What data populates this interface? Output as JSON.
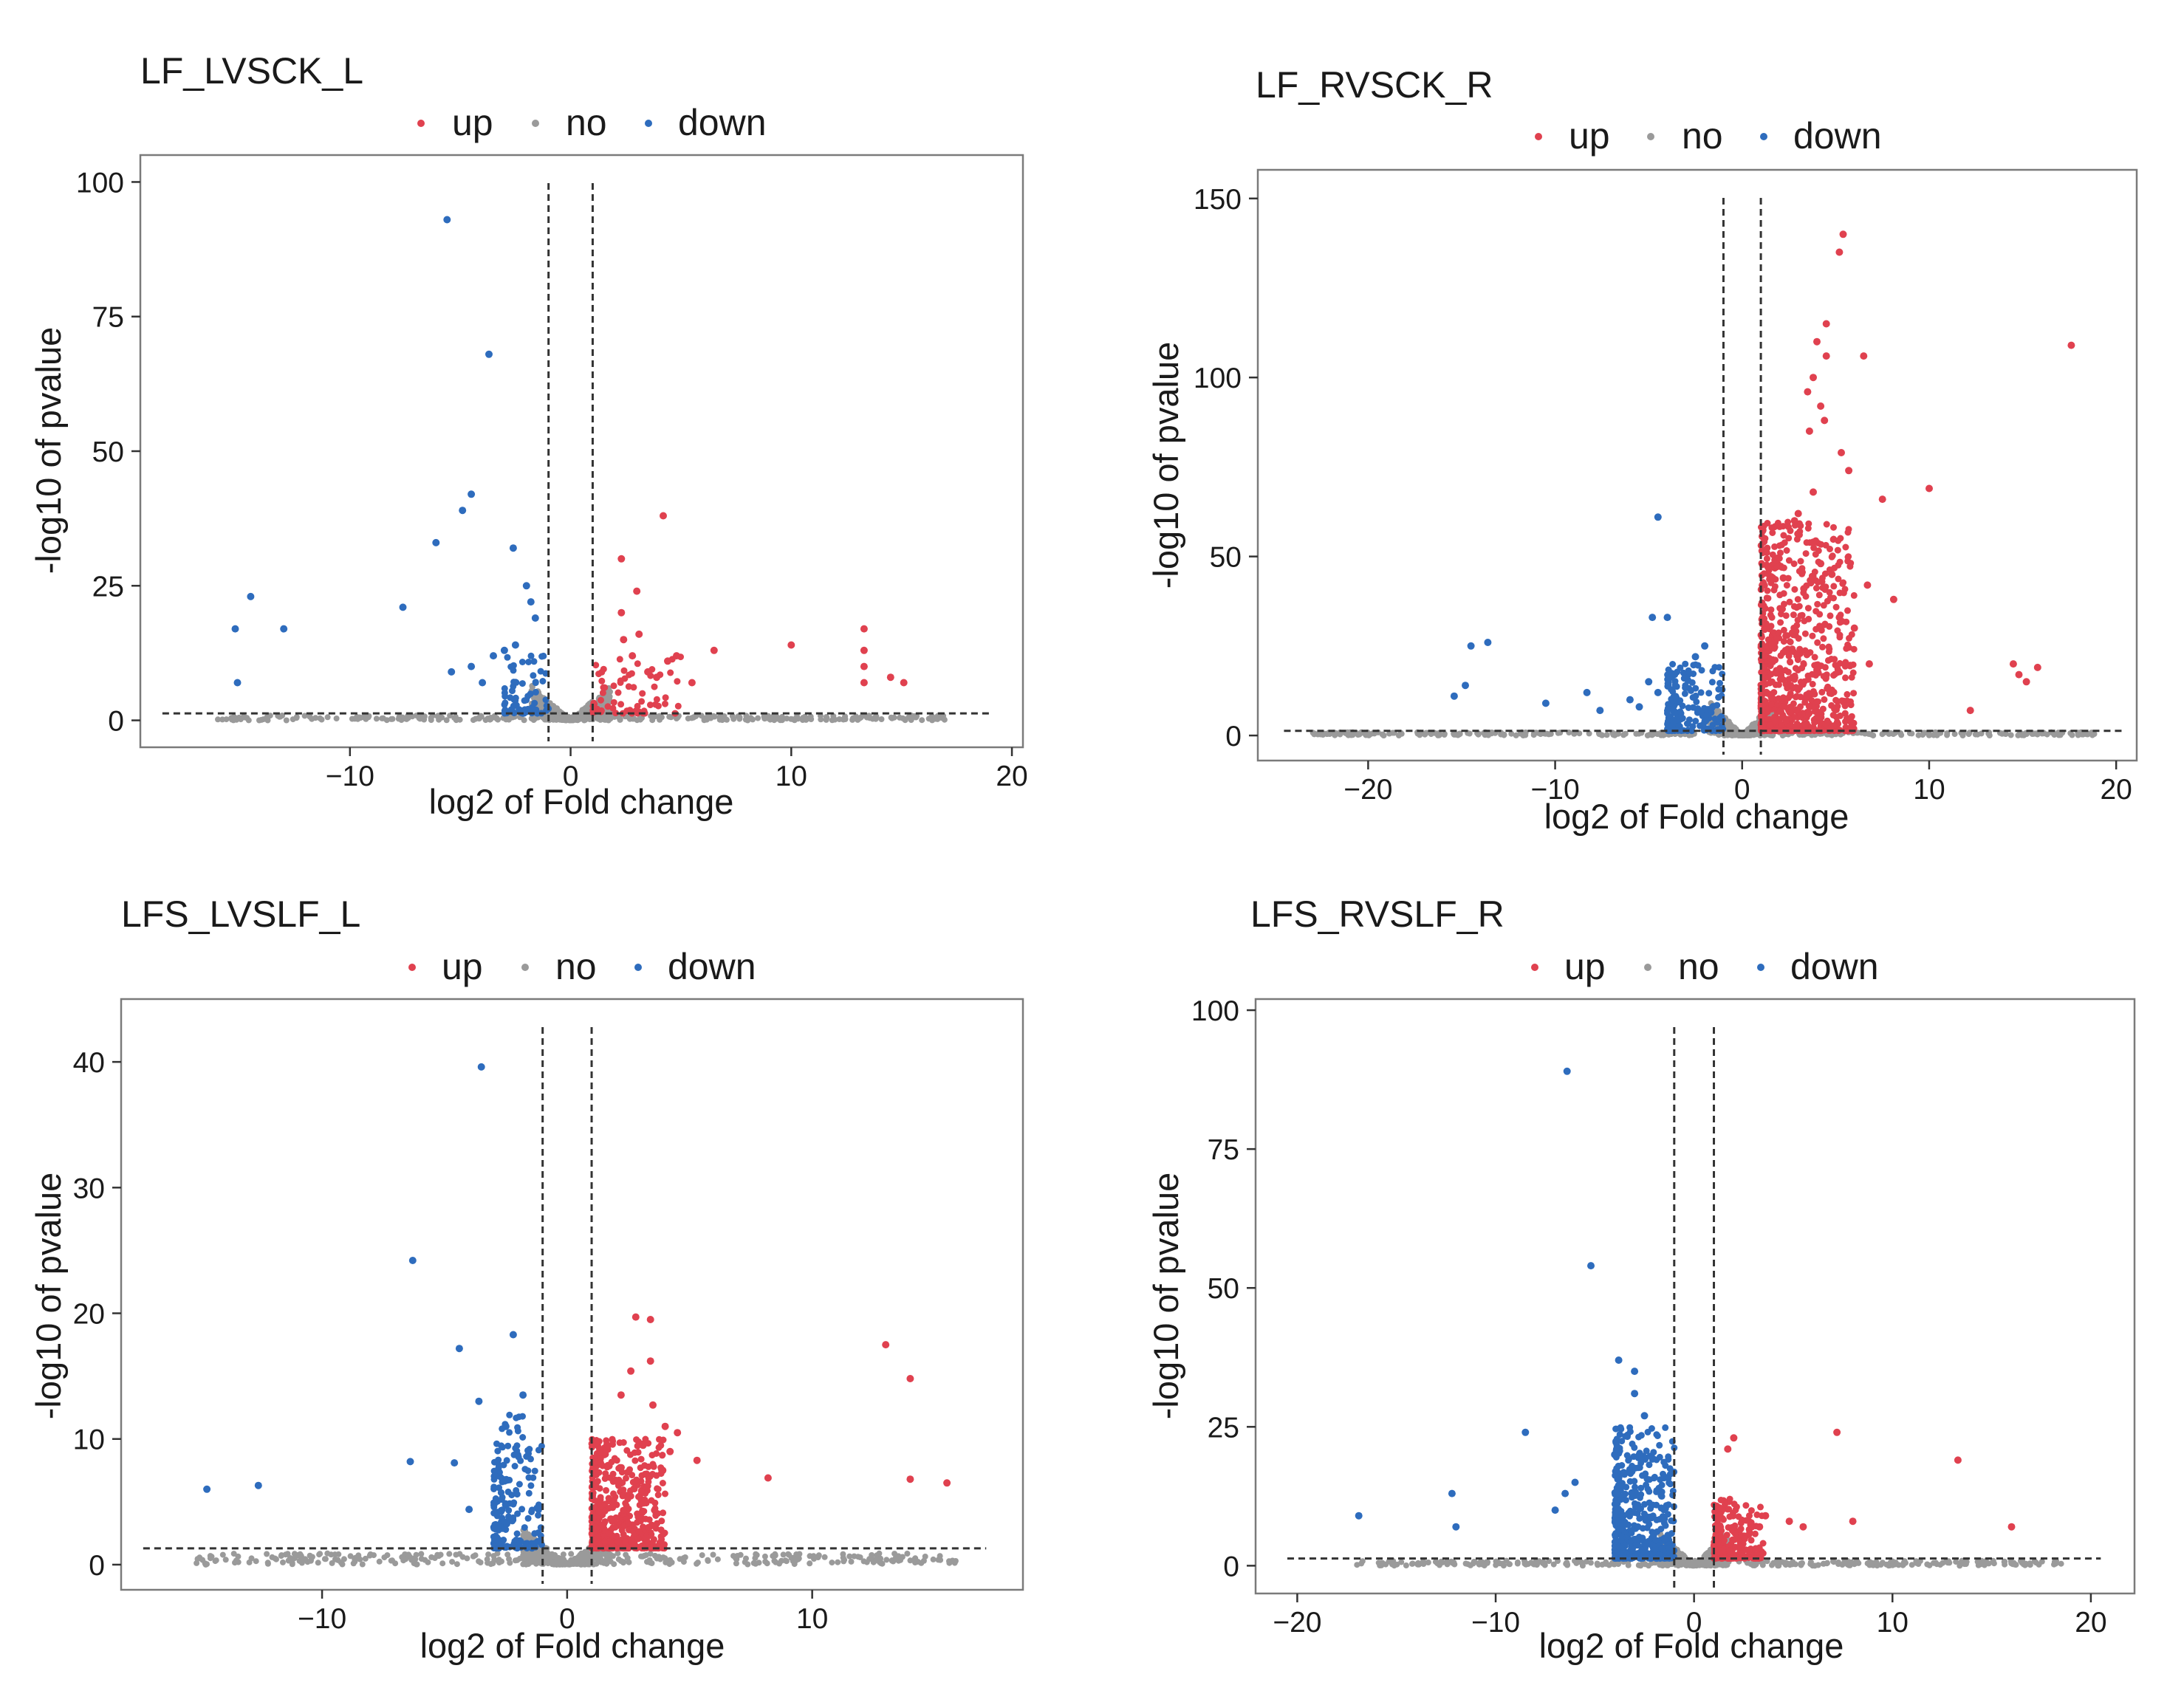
{
  "legend": {
    "labels": [
      "up",
      "no",
      "down"
    ],
    "colors": {
      "up": "#e0414f",
      "no": "#9a9a9a",
      "down": "#2e6cbd"
    }
  },
  "chart_data": [
    {
      "type": "scatter",
      "title": "LF_LVSCK_L",
      "xlabel": "log2 of Fold change",
      "ylabel": "-log10 of pvalue",
      "xlim": [
        -19.5,
        20.5
      ],
      "ylim": [
        -5,
        105
      ],
      "xticks": [
        -10,
        0,
        10,
        20
      ],
      "xtick_labels": [
        "−10",
        "0",
        "10",
        "20"
      ],
      "yticks": [
        0,
        25,
        50,
        75,
        100
      ],
      "ytick_labels": [
        "0",
        "25",
        "50",
        "75",
        "100"
      ],
      "fc_threshold": 1,
      "p_threshold": 1.3,
      "hline_xrange": [
        -18.5,
        19
      ],
      "no_range": [
        -16,
        17
      ],
      "dense_seed": 11,
      "up_dense": {
        "n": 70,
        "x": [
          1,
          5
        ],
        "ymax": 12
      },
      "down_dense": {
        "n": 70,
        "x": [
          -3,
          -1
        ],
        "ymax": 12
      },
      "up_points": [
        [
          4.2,
          38
        ],
        [
          2.3,
          30
        ],
        [
          3,
          24
        ],
        [
          2.3,
          20
        ],
        [
          2.4,
          15
        ],
        [
          6.5,
          13
        ],
        [
          10,
          14
        ],
        [
          13.3,
          17
        ],
        [
          13.3,
          13
        ],
        [
          13.3,
          10
        ],
        [
          13.3,
          7
        ],
        [
          14.5,
          8
        ],
        [
          15.1,
          7
        ],
        [
          4.8,
          12
        ],
        [
          4.4,
          11
        ],
        [
          3.5,
          9
        ],
        [
          3.9,
          8
        ],
        [
          5.5,
          7
        ],
        [
          3.1,
          16
        ],
        [
          2.8,
          12
        ]
      ],
      "down_points": [
        [
          -5.6,
          93
        ],
        [
          -3.7,
          68
        ],
        [
          -4.5,
          42
        ],
        [
          -4.9,
          39
        ],
        [
          -6.1,
          33
        ],
        [
          -2.6,
          32
        ],
        [
          -7.6,
          21
        ],
        [
          -14.5,
          23
        ],
        [
          -15.2,
          17
        ],
        [
          -13,
          17
        ],
        [
          -15.1,
          7
        ],
        [
          -5.4,
          9
        ],
        [
          -4,
          7
        ],
        [
          -2,
          25
        ],
        [
          -1.8,
          22
        ],
        [
          -1.6,
          19
        ],
        [
          -3.5,
          12
        ],
        [
          -3,
          13
        ],
        [
          -2.5,
          14
        ],
        [
          -4.5,
          10
        ]
      ]
    },
    {
      "type": "scatter",
      "title": "LF_RVSCK_R",
      "xlabel": "log2 of Fold change",
      "ylabel": "-log10 of pvalue",
      "xlim": [
        -25.9,
        21.1
      ],
      "ylim": [
        -7,
        158
      ],
      "xticks": [
        -20,
        -10,
        0,
        10,
        20
      ],
      "xtick_labels": [
        "−20",
        "−10",
        "0",
        "10",
        "20"
      ],
      "yticks": [
        0,
        50,
        100,
        150
      ],
      "ytick_labels": [
        "0",
        "50",
        "100",
        "150"
      ],
      "fc_threshold": 1,
      "p_threshold": 1.3,
      "hline_xrange": [
        -24.5,
        20.5
      ],
      "no_range": [
        -23,
        19
      ],
      "dense_seed": 22,
      "up_dense": {
        "n": 800,
        "x": [
          1,
          6
        ],
        "ymax": 60
      },
      "down_dense": {
        "n": 180,
        "x": [
          -4,
          -1
        ],
        "ymax": 20
      },
      "up_points": [
        [
          5.4,
          140
        ],
        [
          5.2,
          135
        ],
        [
          4.5,
          115
        ],
        [
          4,
          110
        ],
        [
          4.5,
          106
        ],
        [
          6.5,
          106
        ],
        [
          17.6,
          109
        ],
        [
          3.8,
          100
        ],
        [
          3.5,
          96
        ],
        [
          4.2,
          92
        ],
        [
          4.4,
          88
        ],
        [
          3.6,
          85
        ],
        [
          5.3,
          79
        ],
        [
          5.7,
          74
        ],
        [
          7.5,
          66
        ],
        [
          10,
          69
        ],
        [
          3.8,
          68
        ],
        [
          8.1,
          38
        ],
        [
          12.2,
          7
        ],
        [
          14.5,
          20
        ],
        [
          14.8,
          17
        ],
        [
          15.2,
          15
        ],
        [
          15.8,
          19
        ],
        [
          6.7,
          42
        ],
        [
          6.8,
          20
        ],
        [
          6,
          30
        ],
        [
          4.2,
          48
        ],
        [
          3.8,
          54
        ],
        [
          3,
          62
        ],
        [
          2.8,
          60
        ],
        [
          2.2,
          44
        ],
        [
          3.3,
          41
        ],
        [
          4.8,
          45
        ],
        [
          5.2,
          33
        ]
      ],
      "down_points": [
        [
          -4.5,
          61
        ],
        [
          -13.6,
          26
        ],
        [
          -14.5,
          25
        ],
        [
          -14.8,
          14
        ],
        [
          -15.4,
          11
        ],
        [
          -10.5,
          9
        ],
        [
          -8.3,
          12
        ],
        [
          -4.8,
          33
        ],
        [
          -4,
          33
        ],
        [
          -7.6,
          7
        ],
        [
          -5,
          15
        ],
        [
          -4.5,
          12
        ],
        [
          -2,
          25
        ],
        [
          -2.5,
          22
        ],
        [
          -6,
          10
        ],
        [
          -5.5,
          8
        ]
      ]
    },
    {
      "type": "scatter",
      "title": "LFS_LVSLF_L",
      "xlabel": "log2 of Fold change",
      "ylabel": "-log10 of pvalue",
      "xlim": [
        -18.2,
        18.6
      ],
      "ylim": [
        -2,
        45
      ],
      "xticks": [
        -10,
        0,
        10
      ],
      "xtick_labels": [
        "−10",
        "0",
        "10"
      ],
      "yticks": [
        0,
        10,
        20,
        30,
        40
      ],
      "ytick_labels": [
        "0",
        "10",
        "20",
        "30",
        "40"
      ],
      "fc_threshold": 1,
      "p_threshold": 1.3,
      "hline_xrange": [
        -17.3,
        17.1
      ],
      "no_range": [
        -15.5,
        16
      ],
      "dense_seed": 33,
      "up_dense": {
        "n": 500,
        "x": [
          1,
          4
        ],
        "ymax": 10
      },
      "down_dense": {
        "n": 180,
        "x": [
          -3,
          -1
        ],
        "ymax": 12
      },
      "up_points": [
        [
          2.8,
          19.7
        ],
        [
          3.4,
          19.5
        ],
        [
          3.4,
          16.2
        ],
        [
          2.2,
          13.5
        ],
        [
          3.5,
          12.7
        ],
        [
          4,
          11
        ],
        [
          4.5,
          10.5
        ],
        [
          5.3,
          8.3
        ],
        [
          8.2,
          6.9
        ],
        [
          13,
          17.5
        ],
        [
          14,
          14.8
        ],
        [
          14,
          6.8
        ],
        [
          15.5,
          6.5
        ],
        [
          2.6,
          15.4
        ],
        [
          3.1,
          9.5
        ],
        [
          3.9,
          7.5
        ],
        [
          4.2,
          9
        ]
      ],
      "down_points": [
        [
          -3.5,
          39.6
        ],
        [
          -6.3,
          24.2
        ],
        [
          -2.2,
          18.3
        ],
        [
          -4.4,
          17.2
        ],
        [
          -3.6,
          13
        ],
        [
          -6.4,
          8.2
        ],
        [
          -4.6,
          8.1
        ],
        [
          -4,
          4.4
        ],
        [
          -14.7,
          6
        ],
        [
          -12.6,
          6.3
        ],
        [
          -1.8,
          13.5
        ],
        [
          -2.5,
          11
        ]
      ]
    },
    {
      "type": "scatter",
      "title": "LFS_RVSLF_R",
      "xlabel": "log2 of Fold change",
      "ylabel": "-log10 of pvalue",
      "xlim": [
        -22.1,
        22.2
      ],
      "ylim": [
        -5,
        102
      ],
      "xticks": [
        -20,
        -10,
        0,
        10,
        20
      ],
      "xtick_labels": [
        "−20",
        "−10",
        "0",
        "10",
        "20"
      ],
      "yticks": [
        0,
        25,
        50,
        75,
        100
      ],
      "ytick_labels": [
        "0",
        "25",
        "50",
        "75",
        "100"
      ],
      "fc_threshold": 1,
      "p_threshold": 1.3,
      "hline_xrange": [
        -20.5,
        20.5
      ],
      "no_range": [
        -17,
        18.5
      ],
      "dense_seed": 44,
      "up_dense": {
        "n": 250,
        "x": [
          1,
          3.5
        ],
        "ymax": 12
      },
      "down_dense": {
        "n": 500,
        "x": [
          -4,
          -1
        ],
        "ymax": 25
      },
      "up_points": [
        [
          2,
          23
        ],
        [
          1.7,
          21
        ],
        [
          7.2,
          24
        ],
        [
          13.3,
          19
        ],
        [
          16,
          7
        ],
        [
          8,
          8
        ],
        [
          5.5,
          7
        ],
        [
          4.8,
          8
        ],
        [
          3.6,
          9
        ],
        [
          3.3,
          7
        ]
      ],
      "down_points": [
        [
          -6.4,
          89
        ],
        [
          -5.2,
          54
        ],
        [
          -3.8,
          37
        ],
        [
          -3,
          35
        ],
        [
          -3,
          31
        ],
        [
          -8.5,
          24
        ],
        [
          -12.2,
          13
        ],
        [
          -12,
          7
        ],
        [
          -16.9,
          9
        ],
        [
          -6.5,
          13
        ],
        [
          -6,
          15
        ],
        [
          -7,
          10
        ],
        [
          -2.5,
          27
        ],
        [
          -4,
          20
        ]
      ]
    }
  ]
}
